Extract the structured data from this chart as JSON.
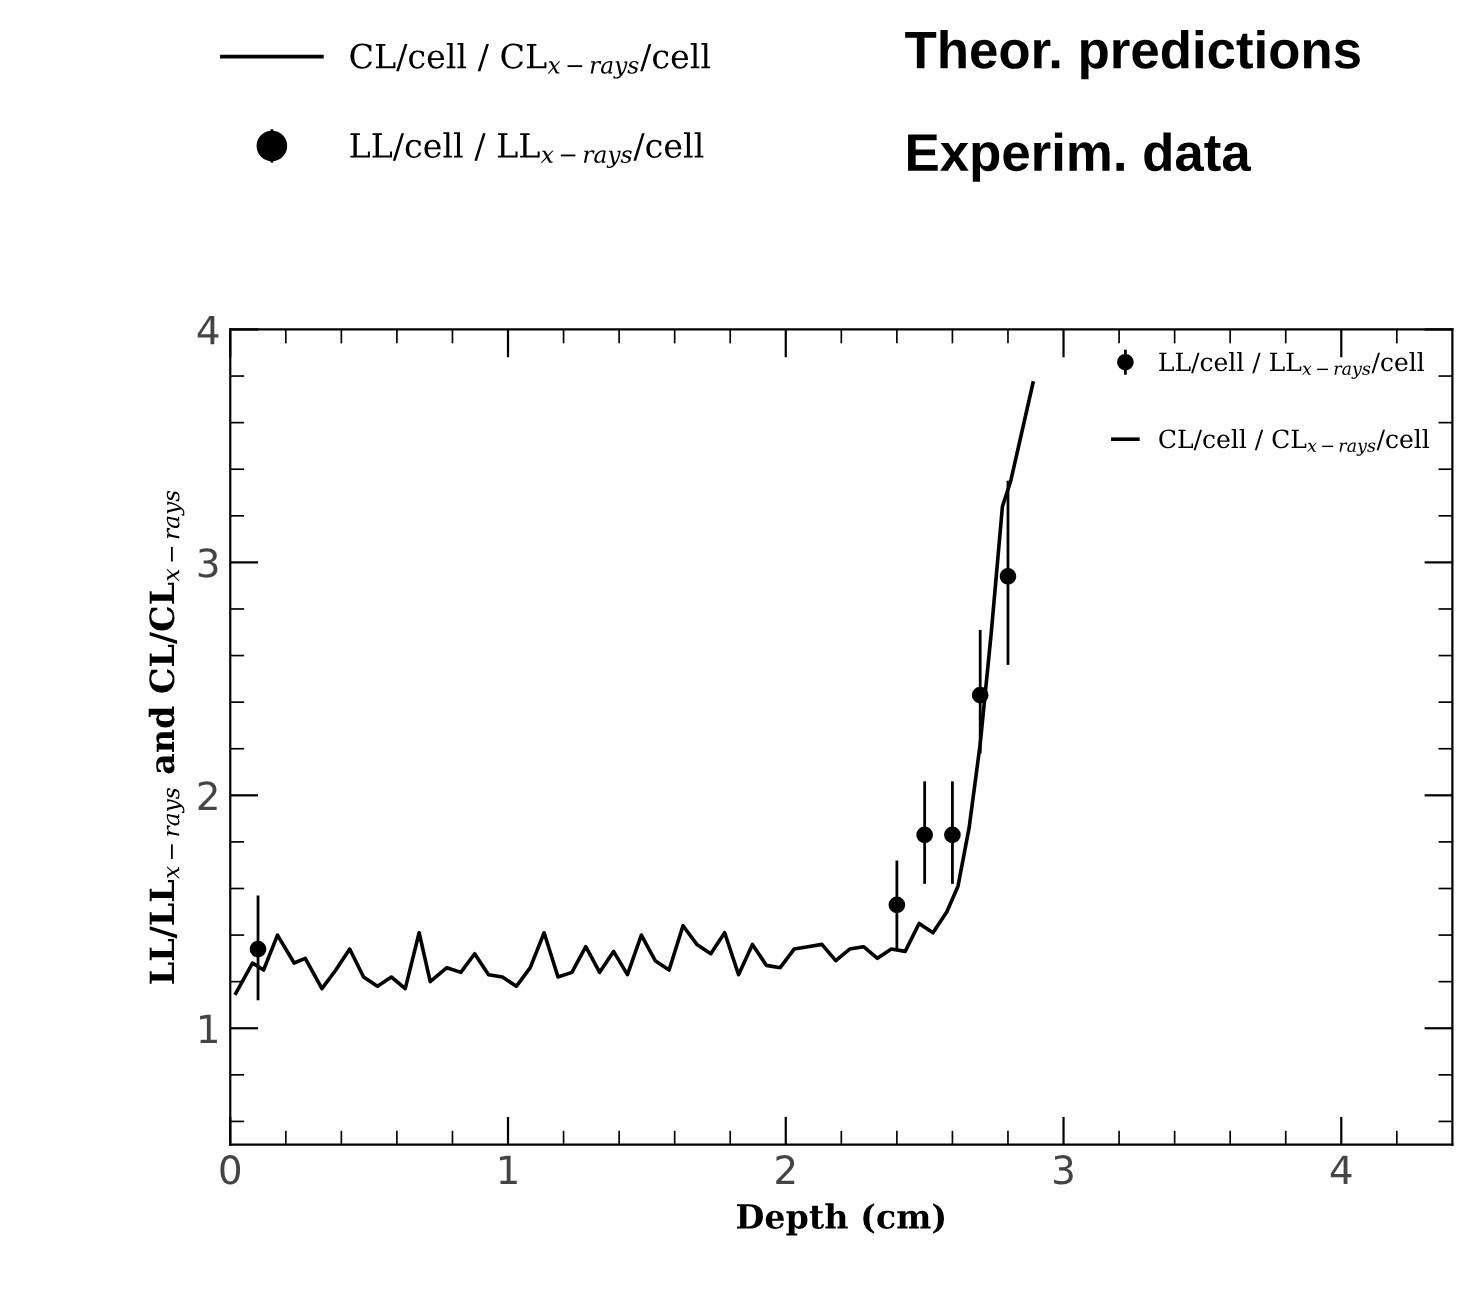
{
  "chart_data": {
    "type": "line",
    "xlabel": "Depth (cm)",
    "ylabel": "LL/LL$_{x−rays}$ and CL/CL$_{x−rays}$",
    "annotations": [
      "Theor. predictions",
      "Experim. data"
    ],
    "legend": "top right",
    "xlim": [
      0,
      4.4
    ],
    "ylim": [
      0.5,
      4
    ],
    "xticks": [
      0,
      {
        "value": 0.2,
        "label": null
      },
      {
        "value": 0.4,
        "label": null
      },
      {
        "value": 0.6,
        "label": null
      },
      {
        "value": 0.8,
        "label": null
      },
      1,
      {
        "value": 1.2,
        "label": null
      },
      {
        "value": 1.4,
        "label": null
      },
      {
        "value": 1.6,
        "label": null
      },
      {
        "value": 1.8,
        "label": null
      },
      2,
      {
        "value": 2.2,
        "label": null
      },
      {
        "value": 2.4,
        "label": null
      },
      {
        "value": 2.6,
        "label": null
      },
      {
        "value": 2.8,
        "label": null
      },
      3,
      {
        "value": 3.2,
        "label": null
      },
      {
        "value": 3.4,
        "label": null
      },
      {
        "value": 3.6,
        "label": null
      },
      {
        "value": 3.8,
        "label": null
      },
      4,
      {
        "value": 4.2,
        "label": null
      }
    ],
    "yticks": [
      {
        "value": 0.6,
        "label": null
      },
      {
        "value": 0.8,
        "label": null
      },
      1,
      {
        "value": 1.2,
        "label": null
      },
      {
        "value": 1.4,
        "label": null
      },
      {
        "value": 1.6,
        "label": null
      },
      {
        "value": 1.8,
        "label": null
      },
      2,
      {
        "value": 2.2,
        "label": null
      },
      {
        "value": 2.4,
        "label": null
      },
      {
        "value": 2.6,
        "label": null
      },
      {
        "value": 2.8,
        "label": null
      },
      3,
      {
        "value": 3.2,
        "label": null
      },
      {
        "value": 3.4,
        "label": null
      },
      {
        "value": 3.6,
        "label": null
      },
      {
        "value": 3.8,
        "label": null
      },
      4
    ],
    "grid": false,
    "series": [
      {
        "name": "CL/cell / CL$_{x−rays}$/cell",
        "color": "#000000",
        "marker": "none",
        "line_style": "solid",
        "x": [
          0.02,
          0.08,
          0.12,
          0.17,
          0.23,
          0.27,
          0.33,
          0.38,
          0.43,
          0.48,
          0.53,
          0.58,
          0.63,
          0.68,
          0.72,
          0.78,
          0.83,
          0.88,
          0.93,
          0.98,
          1.03,
          1.08,
          1.13,
          1.18,
          1.23,
          1.28,
          1.33,
          1.38,
          1.43,
          1.48,
          1.53,
          1.58,
          1.63,
          1.68,
          1.73,
          1.78,
          1.83,
          1.88,
          1.93,
          1.98,
          2.03,
          2.08,
          2.13,
          2.18,
          2.23,
          2.28,
          2.33,
          2.38,
          2.43,
          2.48,
          2.53,
          2.58,
          2.62,
          2.66,
          2.7,
          2.74,
          2.78,
          2.81,
          2.89
        ],
        "values": [
          1.15,
          1.28,
          1.25,
          1.4,
          1.28,
          1.3,
          1.17,
          1.25,
          1.34,
          1.22,
          1.18,
          1.22,
          1.17,
          1.41,
          1.2,
          1.26,
          1.24,
          1.32,
          1.23,
          1.22,
          1.18,
          1.26,
          1.41,
          1.22,
          1.24,
          1.35,
          1.24,
          1.33,
          1.23,
          1.4,
          1.29,
          1.25,
          1.44,
          1.36,
          1.32,
          1.41,
          1.23,
          1.36,
          1.27,
          1.26,
          1.34,
          1.35,
          1.36,
          1.29,
          1.34,
          1.35,
          1.3,
          1.34,
          1.33,
          1.45,
          1.41,
          1.5,
          1.61,
          1.86,
          2.22,
          2.7,
          3.24,
          3.35,
          3.77
        ]
      },
      {
        "name": "LL/cell / LL$_{x−rays}$/cell",
        "type": "scatter",
        "color": "#000000",
        "marker": "circle",
        "x": [
          0.1,
          2.4,
          2.5,
          2.6,
          2.7,
          2.8
        ],
        "values": [
          1.34,
          1.53,
          1.83,
          1.83,
          2.43,
          2.94
        ],
        "errors": [
          [
            1.12,
            1.57
          ],
          [
            1.34,
            1.72
          ],
          [
            1.62,
            2.06
          ],
          [
            1.62,
            2.06
          ],
          [
            2.18,
            2.71
          ],
          [
            2.56,
            3.35
          ]
        ]
      }
    ]
  }
}
